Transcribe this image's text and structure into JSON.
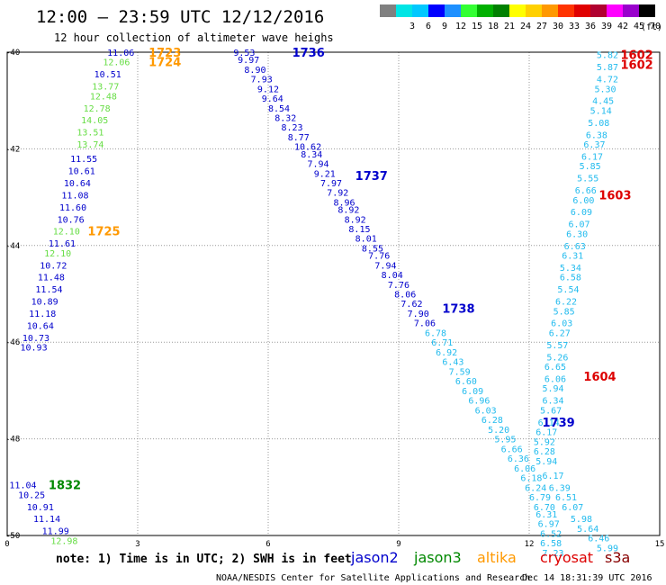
{
  "header": {
    "title": "12:00 – 23:59 UTC 12/12/2016",
    "subtitle": "12 hour collection of altimeter wave heighs"
  },
  "legend": {
    "unit": "(ft)",
    "scale": [
      {
        "label": "",
        "color": "#808080"
      },
      {
        "label": "3",
        "color": "#00e5e5"
      },
      {
        "label": "6",
        "color": "#00c8ff"
      },
      {
        "label": "9",
        "color": "#0000ff"
      },
      {
        "label": "12",
        "color": "#1e90ff"
      },
      {
        "label": "15",
        "color": "#33ff33"
      },
      {
        "label": "18",
        "color": "#00b000"
      },
      {
        "label": "21",
        "color": "#008000"
      },
      {
        "label": "24",
        "color": "#ffff00"
      },
      {
        "label": "27",
        "color": "#ffd000"
      },
      {
        "label": "30",
        "color": "#ff9900"
      },
      {
        "label": "33",
        "color": "#ff3300"
      },
      {
        "label": "36",
        "color": "#e00000"
      },
      {
        "label": "39",
        "color": "#b00030"
      },
      {
        "label": "42",
        "color": "#ff00ff"
      },
      {
        "label": "45",
        "color": "#9900cc"
      },
      {
        "label": "70",
        "color": "#000000"
      }
    ]
  },
  "axes": {
    "x_ticks": [
      "0",
      "3",
      "6",
      "9",
      "12",
      "15"
    ],
    "y_ticks": [
      "-40",
      "-42",
      "-44",
      "-46",
      "-48",
      "-50"
    ]
  },
  "satellites": [
    {
      "name": "jason2",
      "color": "#0000cc"
    },
    {
      "name": "jason3",
      "color": "#008800"
    },
    {
      "name": "altika",
      "color": "#ff9900"
    },
    {
      "name": "cryosat",
      "color": "#dd0000"
    },
    {
      "name": "s3a",
      "color": "#880000"
    }
  ],
  "footer": {
    "note": "note: 1) Time is in UTC; 2) SWH is in feet",
    "credit": "NOAA/NESDIS Center for Satellite Applications and Research",
    "timestamp": "Dec 14 18:31:39 UTC 2016"
  },
  "colors": {
    "jason2": "#0000cc",
    "jason3_light": "#66dd44",
    "jason3_dark": "#008800",
    "altika": "#ff9900",
    "cryosat": "#dd0000",
    "s3a_cyan": "#22bbee",
    "grid": "#999999"
  },
  "pass_labels": [
    {
      "text": "1723",
      "lon": 3.25,
      "lat": -40.0,
      "sat": "altika"
    },
    {
      "text": "1724",
      "lon": 3.25,
      "lat": -40.2,
      "sat": "altika"
    },
    {
      "text": "1725",
      "lon": 1.85,
      "lat": -43.7,
      "sat": "altika"
    },
    {
      "text": "1736",
      "lon": 6.55,
      "lat": -40.0,
      "sat": "jason2"
    },
    {
      "text": "1737",
      "lon": 8.0,
      "lat": -42.55,
      "sat": "jason2"
    },
    {
      "text": "1738",
      "lon": 10.0,
      "lat": -45.3,
      "sat": "jason2"
    },
    {
      "text": "1739",
      "lon": 12.3,
      "lat": -47.65,
      "sat": "jason2"
    },
    {
      "text": "1832",
      "lon": 0.95,
      "lat": -48.95,
      "sat": "jason3"
    },
    {
      "text": "1602",
      "lon": 14.1,
      "lat": -40.05,
      "sat": "cryosat"
    },
    {
      "text": "1602",
      "lon": 14.1,
      "lat": -40.25,
      "sat": "cryosat"
    },
    {
      "text": "1603",
      "lon": 13.6,
      "lat": -42.95,
      "sat": "cryosat"
    },
    {
      "text": "1604",
      "lon": 13.25,
      "lat": -46.7,
      "sat": "cryosat"
    }
  ],
  "observations": [
    {
      "v": "11.06",
      "lon": 2.3,
      "lat": -40.0,
      "c": "jason2"
    },
    {
      "v": "12.06",
      "lon": 2.2,
      "lat": -40.2,
      "c": "jason3_light"
    },
    {
      "v": "10.51",
      "lon": 2.0,
      "lat": -40.45,
      "c": "jason2"
    },
    {
      "v": "13.77",
      "lon": 1.95,
      "lat": -40.7,
      "c": "jason3_light"
    },
    {
      "v": "12.48",
      "lon": 1.9,
      "lat": -40.9,
      "c": "jason3_light"
    },
    {
      "v": "12.78",
      "lon": 1.75,
      "lat": -41.15,
      "c": "jason3_light"
    },
    {
      "v": "14.05",
      "lon": 1.7,
      "lat": -41.4,
      "c": "jason3_light"
    },
    {
      "v": "13.51",
      "lon": 1.6,
      "lat": -41.65,
      "c": "jason3_light"
    },
    {
      "v": "13.74",
      "lon": 1.6,
      "lat": -41.9,
      "c": "jason3_light"
    },
    {
      "v": "11.55",
      "lon": 1.45,
      "lat": -42.2,
      "c": "jason2"
    },
    {
      "v": "10.61",
      "lon": 1.4,
      "lat": -42.45,
      "c": "jason2"
    },
    {
      "v": "10.64",
      "lon": 1.3,
      "lat": -42.7,
      "c": "jason2"
    },
    {
      "v": "11.08",
      "lon": 1.25,
      "lat": -42.95,
      "c": "jason2"
    },
    {
      "v": "11.60",
      "lon": 1.2,
      "lat": -43.2,
      "c": "jason2"
    },
    {
      "v": "10.76",
      "lon": 1.15,
      "lat": -43.45,
      "c": "jason2"
    },
    {
      "v": "12.10",
      "lon": 1.05,
      "lat": -43.7,
      "c": "jason3_light"
    },
    {
      "v": "11.61",
      "lon": 0.95,
      "lat": -43.95,
      "c": "jason2"
    },
    {
      "v": "12.10",
      "lon": 0.85,
      "lat": -44.15,
      "c": "jason3_light"
    },
    {
      "v": "10.72",
      "lon": 0.75,
      "lat": -44.4,
      "c": "jason2"
    },
    {
      "v": "11.48",
      "lon": 0.7,
      "lat": -44.65,
      "c": "jason2"
    },
    {
      "v": "11.54",
      "lon": 0.65,
      "lat": -44.9,
      "c": "jason2"
    },
    {
      "v": "10.89",
      "lon": 0.55,
      "lat": -45.15,
      "c": "jason2"
    },
    {
      "v": "11.18",
      "lon": 0.5,
      "lat": -45.4,
      "c": "jason2"
    },
    {
      "v": "10.64",
      "lon": 0.45,
      "lat": -45.65,
      "c": "jason2"
    },
    {
      "v": "10.73",
      "lon": 0.35,
      "lat": -45.9,
      "c": "jason2"
    },
    {
      "v": "10.93",
      "lon": 0.3,
      "lat": -46.1,
      "c": "jason2"
    },
    {
      "v": "9.53",
      "lon": 5.2,
      "lat": -40.0,
      "c": "jason2"
    },
    {
      "v": "9.97",
      "lon": 5.3,
      "lat": -40.15,
      "c": "jason2"
    },
    {
      "v": "8.90",
      "lon": 5.45,
      "lat": -40.35,
      "c": "jason2"
    },
    {
      "v": "7.93",
      "lon": 5.6,
      "lat": -40.55,
      "c": "jason2"
    },
    {
      "v": "9.12",
      "lon": 5.75,
      "lat": -40.75,
      "c": "jason2"
    },
    {
      "v": "9.64",
      "lon": 5.85,
      "lat": -40.95,
      "c": "jason2"
    },
    {
      "v": "8.54",
      "lon": 6.0,
      "lat": -41.15,
      "c": "jason2"
    },
    {
      "v": "8.32",
      "lon": 6.15,
      "lat": -41.35,
      "c": "jason2"
    },
    {
      "v": "8.23",
      "lon": 6.3,
      "lat": -41.55,
      "c": "jason2"
    },
    {
      "v": "8.77",
      "lon": 6.45,
      "lat": -41.75,
      "c": "jason2"
    },
    {
      "v": "10.62",
      "lon": 6.6,
      "lat": -41.95,
      "c": "jason2"
    },
    {
      "v": "8.34",
      "lon": 6.75,
      "lat": -42.1,
      "c": "jason2"
    },
    {
      "v": "7.94",
      "lon": 6.9,
      "lat": -42.3,
      "c": "jason2"
    },
    {
      "v": "9.21",
      "lon": 7.05,
      "lat": -42.5,
      "c": "jason2"
    },
    {
      "v": "7.97",
      "lon": 7.2,
      "lat": -42.7,
      "c": "jason2"
    },
    {
      "v": "7.92",
      "lon": 7.35,
      "lat": -42.9,
      "c": "jason2"
    },
    {
      "v": "8.96",
      "lon": 7.5,
      "lat": -43.1,
      "c": "jason2"
    },
    {
      "v": "8.92",
      "lon": 7.6,
      "lat": -43.25,
      "c": "jason2"
    },
    {
      "v": "8.92",
      "lon": 7.75,
      "lat": -43.45,
      "c": "jason2"
    },
    {
      "v": "8.15",
      "lon": 7.85,
      "lat": -43.65,
      "c": "jason2"
    },
    {
      "v": "8.01",
      "lon": 8.0,
      "lat": -43.85,
      "c": "jason2"
    },
    {
      "v": "8.55",
      "lon": 8.15,
      "lat": -44.05,
      "c": "jason2"
    },
    {
      "v": "7.76",
      "lon": 8.3,
      "lat": -44.2,
      "c": "jason2"
    },
    {
      "v": "7.94",
      "lon": 8.45,
      "lat": -44.4,
      "c": "jason2"
    },
    {
      "v": "8.04",
      "lon": 8.6,
      "lat": -44.6,
      "c": "jason2"
    },
    {
      "v": "7.76",
      "lon": 8.75,
      "lat": -44.8,
      "c": "jason2"
    },
    {
      "v": "8.06",
      "lon": 8.9,
      "lat": -45.0,
      "c": "jason2"
    },
    {
      "v": "7.62",
      "lon": 9.05,
      "lat": -45.2,
      "c": "jason2"
    },
    {
      "v": "7.90",
      "lon": 9.2,
      "lat": -45.4,
      "c": "jason2"
    },
    {
      "v": "7.06",
      "lon": 9.35,
      "lat": -45.6,
      "c": "jason2"
    },
    {
      "v": "6.78",
      "lon": 9.6,
      "lat": -45.8,
      "c": "s3a_cyan"
    },
    {
      "v": "6.71",
      "lon": 9.75,
      "lat": -46.0,
      "c": "s3a_cyan"
    },
    {
      "v": "6.92",
      "lon": 9.85,
      "lat": -46.2,
      "c": "s3a_cyan"
    },
    {
      "v": "6.43",
      "lon": 10.0,
      "lat": -46.4,
      "c": "s3a_cyan"
    },
    {
      "v": "7.59",
      "lon": 10.15,
      "lat": -46.6,
      "c": "s3a_cyan"
    },
    {
      "v": "6.60",
      "lon": 10.3,
      "lat": -46.8,
      "c": "s3a_cyan"
    },
    {
      "v": "6.09",
      "lon": 10.45,
      "lat": -47.0,
      "c": "s3a_cyan"
    },
    {
      "v": "6.96",
      "lon": 10.6,
      "lat": -47.2,
      "c": "s3a_cyan"
    },
    {
      "v": "6.03",
      "lon": 10.75,
      "lat": -47.4,
      "c": "s3a_cyan"
    },
    {
      "v": "6.28",
      "lon": 10.9,
      "lat": -47.6,
      "c": "s3a_cyan"
    },
    {
      "v": "5.20",
      "lon": 11.05,
      "lat": -47.8,
      "c": "s3a_cyan"
    },
    {
      "v": "5.95",
      "lon": 11.2,
      "lat": -48.0,
      "c": "s3a_cyan"
    },
    {
      "v": "6.66",
      "lon": 11.35,
      "lat": -48.2,
      "c": "s3a_cyan"
    },
    {
      "v": "6.36",
      "lon": 11.5,
      "lat": -48.4,
      "c": "s3a_cyan"
    },
    {
      "v": "6.06",
      "lon": 11.65,
      "lat": -48.6,
      "c": "s3a_cyan"
    },
    {
      "v": "6.18",
      "lon": 11.8,
      "lat": -48.8,
      "c": "s3a_cyan"
    },
    {
      "v": "6.24",
      "lon": 11.9,
      "lat": -49.0,
      "c": "s3a_cyan"
    },
    {
      "v": "6.79",
      "lon": 12.0,
      "lat": -49.2,
      "c": "s3a_cyan"
    },
    {
      "v": "6.70",
      "lon": 12.1,
      "lat": -49.4,
      "c": "s3a_cyan"
    },
    {
      "v": "6.31",
      "lon": 12.15,
      "lat": -49.55,
      "c": "s3a_cyan"
    },
    {
      "v": "6.97",
      "lon": 12.2,
      "lat": -49.75,
      "c": "s3a_cyan"
    },
    {
      "v": "6.52",
      "lon": 12.25,
      "lat": -49.95,
      "c": "s3a_cyan"
    },
    {
      "v": "6.58",
      "lon": 12.25,
      "lat": -50.15,
      "c": "s3a_cyan"
    },
    {
      "v": "7.23",
      "lon": 12.3,
      "lat": -50.35,
      "c": "s3a_cyan"
    },
    {
      "v": "5.82",
      "lon": 13.55,
      "lat": -40.05,
      "c": "s3a_cyan"
    },
    {
      "v": "5.87",
      "lon": 13.55,
      "lat": -40.3,
      "c": "s3a_cyan"
    },
    {
      "v": "4.72",
      "lon": 13.55,
      "lat": -40.55,
      "c": "s3a_cyan"
    },
    {
      "v": "5.30",
      "lon": 13.5,
      "lat": -40.75,
      "c": "s3a_cyan"
    },
    {
      "v": "4.45",
      "lon": 13.45,
      "lat": -41.0,
      "c": "s3a_cyan"
    },
    {
      "v": "5.14",
      "lon": 13.4,
      "lat": -41.2,
      "c": "s3a_cyan"
    },
    {
      "v": "5.08",
      "lon": 13.35,
      "lat": -41.45,
      "c": "s3a_cyan"
    },
    {
      "v": "6.38",
      "lon": 13.3,
      "lat": -41.7,
      "c": "s3a_cyan"
    },
    {
      "v": "6.37",
      "lon": 13.25,
      "lat": -41.9,
      "c": "s3a_cyan"
    },
    {
      "v": "6.17",
      "lon": 13.2,
      "lat": -42.15,
      "c": "s3a_cyan"
    },
    {
      "v": "5.85",
      "lon": 13.15,
      "lat": -42.35,
      "c": "s3a_cyan"
    },
    {
      "v": "5.55",
      "lon": 13.1,
      "lat": -42.6,
      "c": "s3a_cyan"
    },
    {
      "v": "6.66",
      "lon": 13.05,
      "lat": -42.85,
      "c": "s3a_cyan"
    },
    {
      "v": "6.00",
      "lon": 13.0,
      "lat": -43.05,
      "c": "s3a_cyan"
    },
    {
      "v": "6.09",
      "lon": 12.95,
      "lat": -43.3,
      "c": "s3a_cyan"
    },
    {
      "v": "6.07",
      "lon": 12.9,
      "lat": -43.55,
      "c": "s3a_cyan"
    },
    {
      "v": "6.30",
      "lon": 12.85,
      "lat": -43.75,
      "c": "s3a_cyan"
    },
    {
      "v": "6.63",
      "lon": 12.8,
      "lat": -44.0,
      "c": "s3a_cyan"
    },
    {
      "v": "6.31",
      "lon": 12.75,
      "lat": -44.2,
      "c": "s3a_cyan"
    },
    {
      "v": "5.34",
      "lon": 12.7,
      "lat": -44.45,
      "c": "s3a_cyan"
    },
    {
      "v": "6.58",
      "lon": 12.7,
      "lat": -44.65,
      "c": "s3a_cyan"
    },
    {
      "v": "5.54",
      "lon": 12.65,
      "lat": -44.9,
      "c": "s3a_cyan"
    },
    {
      "v": "6.22",
      "lon": 12.6,
      "lat": -45.15,
      "c": "s3a_cyan"
    },
    {
      "v": "5.85",
      "lon": 12.55,
      "lat": -45.35,
      "c": "s3a_cyan"
    },
    {
      "v": "6.03",
      "lon": 12.5,
      "lat": -45.6,
      "c": "s3a_cyan"
    },
    {
      "v": "6.27",
      "lon": 12.45,
      "lat": -45.8,
      "c": "s3a_cyan"
    },
    {
      "v": "5.57",
      "lon": 12.4,
      "lat": -46.05,
      "c": "s3a_cyan"
    },
    {
      "v": "5.26",
      "lon": 12.4,
      "lat": -46.3,
      "c": "s3a_cyan"
    },
    {
      "v": "6.65",
      "lon": 12.35,
      "lat": -46.5,
      "c": "s3a_cyan"
    },
    {
      "v": "6.06",
      "lon": 12.35,
      "lat": -46.75,
      "c": "s3a_cyan"
    },
    {
      "v": "5.94",
      "lon": 12.3,
      "lat": -46.95,
      "c": "s3a_cyan"
    },
    {
      "v": "6.34",
      "lon": 12.3,
      "lat": -47.2,
      "c": "s3a_cyan"
    },
    {
      "v": "5.67",
      "lon": 12.25,
      "lat": -47.4,
      "c": "s3a_cyan"
    },
    {
      "v": "6.14",
      "lon": 12.2,
      "lat": -47.65,
      "c": "s3a_cyan"
    },
    {
      "v": "6.17",
      "lon": 12.15,
      "lat": -47.85,
      "c": "s3a_cyan"
    },
    {
      "v": "5.92",
      "lon": 12.1,
      "lat": -48.05,
      "c": "s3a_cyan"
    },
    {
      "v": "6.28",
      "lon": 12.1,
      "lat": -48.25,
      "c": "s3a_cyan"
    },
    {
      "v": "5.94",
      "lon": 12.15,
      "lat": -48.45,
      "c": "s3a_cyan"
    },
    {
      "v": "6.17",
      "lon": 12.3,
      "lat": -48.75,
      "c": "s3a_cyan"
    },
    {
      "v": "6.39",
      "lon": 12.45,
      "lat": -49.0,
      "c": "s3a_cyan"
    },
    {
      "v": "6.51",
      "lon": 12.6,
      "lat": -49.2,
      "c": "s3a_cyan"
    },
    {
      "v": "6.07",
      "lon": 12.75,
      "lat": -49.4,
      "c": "s3a_cyan"
    },
    {
      "v": "5.98",
      "lon": 12.95,
      "lat": -49.65,
      "c": "s3a_cyan"
    },
    {
      "v": "5.64",
      "lon": 13.1,
      "lat": -49.85,
      "c": "s3a_cyan"
    },
    {
      "v": "6.46",
      "lon": 13.35,
      "lat": -50.05,
      "c": "s3a_cyan"
    },
    {
      "v": "5.99",
      "lon": 13.55,
      "lat": -50.25,
      "c": "s3a_cyan"
    },
    {
      "v": "11.04",
      "lon": 0.05,
      "lat": -48.95,
      "c": "jason2"
    },
    {
      "v": "10.25",
      "lon": 0.25,
      "lat": -49.15,
      "c": "jason2"
    },
    {
      "v": "10.91",
      "lon": 0.45,
      "lat": -49.4,
      "c": "jason2"
    },
    {
      "v": "11.14",
      "lon": 0.6,
      "lat": -49.65,
      "c": "jason2"
    },
    {
      "v": "11.99",
      "lon": 0.8,
      "lat": -49.9,
      "c": "jason2"
    },
    {
      "v": "12.98",
      "lon": 1.0,
      "lat": -50.1,
      "c": "jason3_light"
    }
  ]
}
